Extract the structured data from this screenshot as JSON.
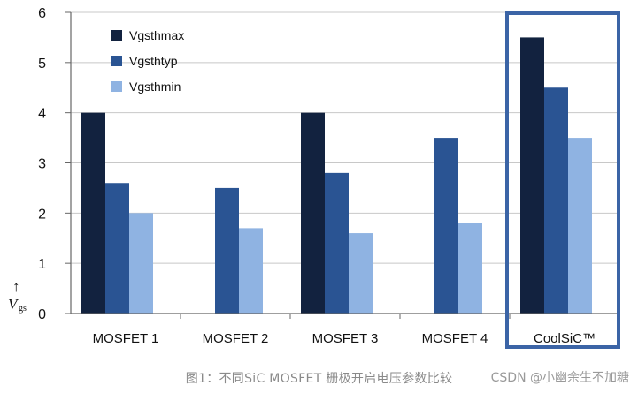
{
  "chart_data": {
    "type": "bar",
    "categories": [
      "MOSFET 1",
      "MOSFET 2",
      "MOSFET 3",
      "MOSFET 4",
      "CoolSiC™"
    ],
    "series": [
      {
        "name": "Vgsthmax",
        "color": "#12223f",
        "values": [
          4,
          null,
          4,
          null,
          5.5
        ]
      },
      {
        "name": "Vgsthtyp",
        "color": "#2a5493",
        "values": [
          2.6,
          2.5,
          2.8,
          3.5,
          4.5
        ]
      },
      {
        "name": "Vgsthmin",
        "color": "#8fb3e2",
        "values": [
          2.0,
          1.7,
          1.6,
          1.8,
          3.5
        ]
      }
    ],
    "ylim": [
      0,
      6
    ],
    "yticks": [
      0,
      1,
      2,
      3,
      4,
      5,
      6
    ],
    "ylabel": "V",
    "ylabel_sub": "gs",
    "ylabel_arrow": "↑",
    "grid": true,
    "legend_position": "top-left",
    "highlighted_category": "CoolSiC™",
    "highlight_color": "#3b64a6"
  },
  "caption": "图1：不同SiC MOSFET 栅极开启电压参数比较",
  "watermark": "CSDN @小幽余生不加糖"
}
